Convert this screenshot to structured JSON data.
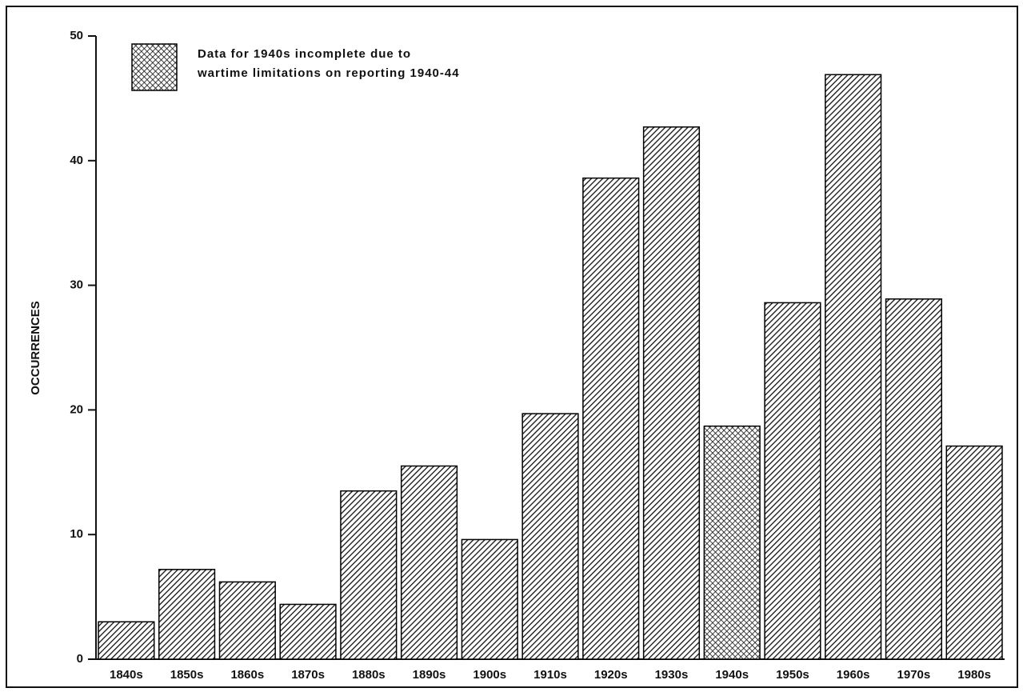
{
  "chart_data": {
    "type": "bar",
    "y_label": "OCCURRENCES",
    "categories": [
      "1840s",
      "1850s",
      "1860s",
      "1870s",
      "1880s",
      "1890s",
      "1900s",
      "1910s",
      "1920s",
      "1930s",
      "1940s",
      "1950s",
      "1960s",
      "1970s",
      "1980s"
    ],
    "series": [
      {
        "color": "#000000",
        "pattern": "hatch",
        "values": [
          3.0,
          7.2,
          6.2,
          4.4,
          13.5,
          15.5,
          9.6,
          19.7,
          38.6,
          42.7,
          null,
          28.6,
          46.9,
          28.9,
          17.1
        ]
      },
      {
        "name": [
          "Data for 1940s incomplete due to",
          "wartime limitations on reporting 1940-44"
        ],
        "color": "#000000",
        "pattern": "crosshatch",
        "values": [
          null,
          null,
          null,
          null,
          null,
          null,
          null,
          null,
          null,
          null,
          18.7,
          null,
          null,
          null,
          null
        ]
      }
    ],
    "ylim": [
      0,
      50
    ],
    "yticks": [
      0,
      10,
      20,
      30,
      40,
      50
    ],
    "grid": false,
    "legend": "top-left"
  }
}
